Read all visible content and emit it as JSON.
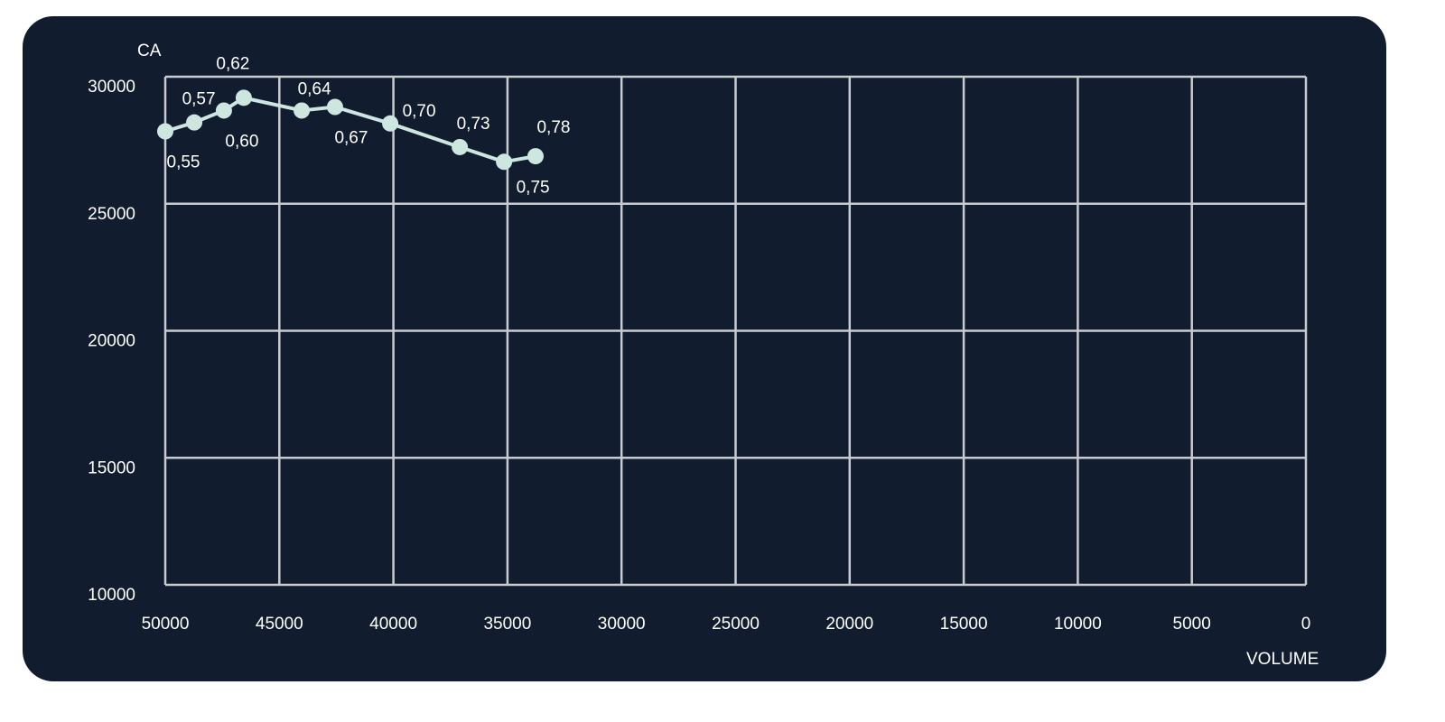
{
  "chart_data": {
    "type": "line",
    "xlabel": "VOLUME",
    "ylabel": "CA",
    "xlim": [
      50000,
      0
    ],
    "ylim": [
      10000,
      30000
    ],
    "x_reversed": true,
    "grid": true,
    "x_ticks": [
      "50000",
      "45000",
      "40000",
      "35000",
      "30000",
      "25000",
      "20000",
      "15000",
      "10000",
      "5000",
      "0"
    ],
    "y_ticks": [
      "30000",
      "25000",
      "20000",
      "15000",
      "10000"
    ],
    "series": [
      {
        "color": "#cde6df",
        "points": [
          {
            "x": 50000,
            "y": 27850,
            "label": "0,55"
          },
          {
            "x": 48730,
            "y": 28200,
            "label": "0,57"
          },
          {
            "x": 47430,
            "y": 28670,
            "label": "0,60"
          },
          {
            "x": 46560,
            "y": 29170,
            "label": "0,62"
          },
          {
            "x": 44020,
            "y": 28670,
            "label": "0,64"
          },
          {
            "x": 42560,
            "y": 28810,
            "label": "0,67"
          },
          {
            "x": 40140,
            "y": 28160,
            "label": "0,70"
          },
          {
            "x": 37090,
            "y": 27230,
            "label": "0,73"
          },
          {
            "x": 35150,
            "y": 26650,
            "label": "0,75"
          },
          {
            "x": 33770,
            "y": 26870,
            "label": "0,78"
          }
        ]
      }
    ],
    "colors": {
      "background": "#111d2f",
      "grid": "#c8cbd0",
      "line": "#cde6df",
      "text": "#ffffff"
    }
  }
}
